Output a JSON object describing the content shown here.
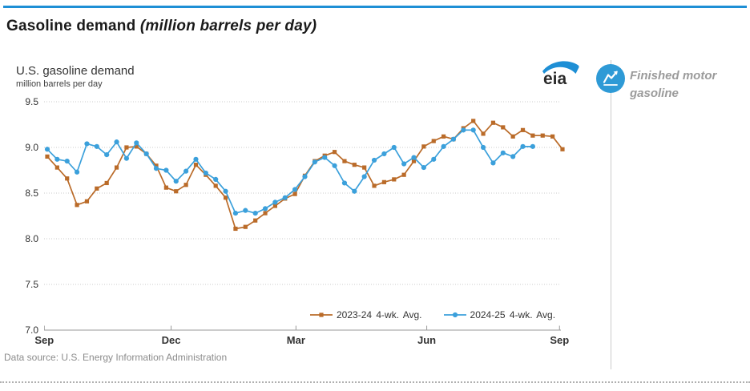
{
  "header": {
    "title": "Gasoline demand ",
    "title_unit": "(million barrels per day)"
  },
  "colors": {
    "accent_blue": "#1e8fd5",
    "series_2023_24": "#ba6b29",
    "series_2024_25": "#3ba0db",
    "gridline": "#cbcbcb",
    "axis": "#9a9a9a",
    "side_icon_blue": "#2e9ad6"
  },
  "logo": {
    "text": "eia"
  },
  "side_panel": {
    "label_line1": "Finished motor",
    "label_line2": "gasoline",
    "icon": "line-chart-icon"
  },
  "footer": {
    "data_source": "Data source: U.S. Energy Information Administration"
  },
  "chart_data": {
    "type": "line",
    "title": "U.S. gasoline demand",
    "ylabel": "million barrels per day",
    "ylim": [
      7.0,
      9.5
    ],
    "y_ticks": [
      9.5,
      9.0,
      8.5,
      8.0,
      7.5,
      7.0
    ],
    "grid": "horizontal dotted",
    "x_tick_labels": [
      "Sep",
      "Dec",
      "Mar",
      "Jun",
      "Sep"
    ],
    "x_tick_weeks": [
      -0.3,
      12.5,
      25.1,
      38.3,
      51.7
    ],
    "x_unit": "weekly observations, September through September",
    "legend_position": "bottom center",
    "series": [
      {
        "name": "2023-24 4-wk. Avg.",
        "marker": "square",
        "color": "#ba6b29",
        "values": [
          8.9,
          8.78,
          8.66,
          8.37,
          8.41,
          8.55,
          8.61,
          8.78,
          9.0,
          9.01,
          8.93,
          8.8,
          8.56,
          8.52,
          8.59,
          8.81,
          8.7,
          8.58,
          8.45,
          8.11,
          8.13,
          8.2,
          8.28,
          8.36,
          8.44,
          8.49,
          8.69,
          8.85,
          8.91,
          8.95,
          8.85,
          8.81,
          8.78,
          8.58,
          8.62,
          8.65,
          8.7,
          8.85,
          9.01,
          9.07,
          9.12,
          9.09,
          9.21,
          9.29,
          9.15,
          9.27,
          9.22,
          9.12,
          9.19,
          9.13,
          9.13,
          9.12,
          8.98
        ]
      },
      {
        "name": "2024-25 4-wk. Avg.",
        "marker": "circle",
        "color": "#3ba0db",
        "values": [
          8.98,
          8.87,
          8.85,
          8.73,
          9.04,
          9.01,
          8.92,
          9.06,
          8.88,
          9.05,
          8.93,
          8.77,
          8.75,
          8.63,
          8.74,
          8.87,
          8.72,
          8.65,
          8.52,
          8.28,
          8.31,
          8.28,
          8.33,
          8.4,
          8.45,
          8.54,
          8.68,
          8.84,
          8.89,
          8.8,
          8.61,
          8.52,
          8.68,
          8.86,
          8.93,
          9.0,
          8.82,
          8.89,
          8.78,
          8.87,
          9.01,
          9.09,
          9.19,
          9.19,
          9.0,
          8.83,
          8.94,
          8.9,
          9.01,
          9.01
        ]
      }
    ]
  }
}
